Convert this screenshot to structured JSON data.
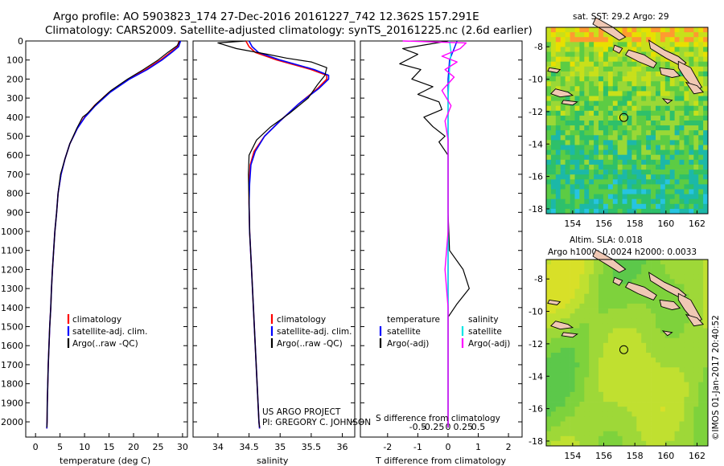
{
  "header": {
    "line1": "Argo profile: AO 5903823_174 27-Dec-2016 20161227_742 12.362S 157.291E",
    "line2": "Climatology: CARS2009. Satellite-adjusted climatology: synTS_20161225.nc (2.6d earlier)"
  },
  "credit": {
    "project": "US ARGO PROJECT",
    "pi": "PI: GREGORY C. JOHNSON"
  },
  "stamp": "©IMOS 01-Jan-2017 20:40:52",
  "colors": {
    "climatology": "#ff0000",
    "satellite": "#0000ff",
    "argo": "#000000",
    "sat_salinity": "#00e5e5",
    "argo_salinity": "#ff00ff"
  },
  "chart_data": [
    {
      "type": "line",
      "id": "temperature",
      "xlabel": "temperature (deg C)",
      "ylabel": "",
      "xlim": [
        -2,
        31
      ],
      "ylim": [
        2080,
        0
      ],
      "xticks": [
        "0",
        "5",
        "10",
        "15",
        "20",
        "25",
        "30"
      ],
      "xtick_values": [
        0,
        5,
        10,
        15,
        20,
        25,
        30
      ],
      "yticks": [
        "0",
        "100",
        "200",
        "300",
        "400",
        "500",
        "600",
        "700",
        "800",
        "900",
        "1000",
        "1100",
        "1200",
        "1300",
        "1400",
        "1500",
        "1600",
        "1700",
        "1800",
        "1900",
        "2000"
      ],
      "ytick_values": [
        0,
        100,
        200,
        300,
        400,
        500,
        600,
        700,
        800,
        900,
        1000,
        1100,
        1200,
        1300,
        1400,
        1500,
        1600,
        1700,
        1800,
        1900,
        2000
      ],
      "legend": [
        "climatology",
        "satellite-adj. clim.",
        "Argo(..raw -QC)"
      ],
      "series": [
        {
          "name": "climatology",
          "color": "#ff0000",
          "width": 1.6,
          "points": [
            [
              29.3,
              0
            ],
            [
              29.0,
              30
            ],
            [
              27.5,
              60
            ],
            [
              25.5,
              100
            ],
            [
              22.5,
              150
            ],
            [
              19.0,
              200
            ],
            [
              15.0,
              270
            ],
            [
              12.0,
              340
            ],
            [
              10.0,
              400
            ],
            [
              8.5,
              460
            ],
            [
              7.0,
              540
            ],
            [
              6.0,
              620
            ],
            [
              5.2,
              700
            ],
            [
              4.6,
              800
            ],
            [
              4.3,
              900
            ],
            [
              3.95,
              1000
            ],
            [
              3.7,
              1100
            ],
            [
              3.45,
              1200
            ],
            [
              3.25,
              1300
            ],
            [
              3.1,
              1400
            ],
            [
              2.9,
              1500
            ],
            [
              2.75,
              1600
            ],
            [
              2.6,
              1700
            ],
            [
              2.5,
              1800
            ],
            [
              2.4,
              1900
            ],
            [
              2.35,
              2000
            ],
            [
              2.3,
              2035
            ]
          ]
        },
        {
          "name": "satellite-adj. clim.",
          "color": "#0000ff",
          "width": 1.6,
          "points": [
            [
              29.6,
              0
            ],
            [
              29.2,
              30
            ],
            [
              27.8,
              60
            ],
            [
              25.8,
              100
            ],
            [
              22.8,
              150
            ],
            [
              19.2,
              200
            ],
            [
              15.2,
              270
            ],
            [
              12.2,
              340
            ],
            [
              10.1,
              400
            ],
            [
              8.5,
              460
            ],
            [
              7.0,
              540
            ],
            [
              6.0,
              620
            ],
            [
              5.2,
              700
            ],
            [
              4.6,
              800
            ],
            [
              4.3,
              900
            ],
            [
              3.95,
              1000
            ],
            [
              3.7,
              1100
            ],
            [
              3.45,
              1200
            ],
            [
              3.25,
              1300
            ],
            [
              3.1,
              1400
            ],
            [
              2.9,
              1500
            ],
            [
              2.75,
              1600
            ],
            [
              2.6,
              1700
            ],
            [
              2.5,
              1800
            ],
            [
              2.4,
              1900
            ],
            [
              2.35,
              2000
            ],
            [
              2.3,
              2035
            ]
          ]
        },
        {
          "name": "Argo(..raw -QC)",
          "color": "#000000",
          "width": 1.2,
          "points": [
            [
              29.4,
              0
            ],
            [
              28.9,
              25
            ],
            [
              27.0,
              60
            ],
            [
              25.0,
              100
            ],
            [
              22.0,
              150
            ],
            [
              18.8,
              200
            ],
            [
              15.4,
              260
            ],
            [
              12.4,
              330
            ],
            [
              10.6,
              380
            ],
            [
              9.6,
              400
            ],
            [
              8.4,
              460
            ],
            [
              7.0,
              540
            ],
            [
              6.0,
              620
            ],
            [
              5.1,
              700
            ],
            [
              4.6,
              800
            ],
            [
              4.3,
              900
            ],
            [
              3.95,
              1000
            ],
            [
              3.7,
              1100
            ],
            [
              3.45,
              1200
            ],
            [
              3.25,
              1300
            ],
            [
              3.1,
              1400
            ],
            [
              2.9,
              1500
            ],
            [
              2.75,
              1600
            ],
            [
              2.6,
              1700
            ],
            [
              2.5,
              1800
            ],
            [
              2.4,
              1900
            ],
            [
              2.35,
              2000
            ],
            [
              2.3,
              2030
            ]
          ]
        }
      ]
    },
    {
      "type": "line",
      "id": "salinity",
      "xlabel": "salinity",
      "ylabel": "",
      "xlim": [
        33.6,
        36.2
      ],
      "ylim": [
        2080,
        0
      ],
      "xticks": [
        "34",
        "34.5",
        "35",
        "35.5",
        "36"
      ],
      "xtick_values": [
        34,
        34.5,
        35,
        35.5,
        36
      ],
      "legend": [
        "climatology",
        "satellite-adj. clim.",
        "Argo(..raw -QC)"
      ],
      "series": [
        {
          "name": "climatology",
          "color": "#ff0000",
          "width": 1.6,
          "points": [
            [
              34.45,
              0
            ],
            [
              34.5,
              30
            ],
            [
              34.6,
              60
            ],
            [
              34.95,
              100
            ],
            [
              35.5,
              150
            ],
            [
              35.75,
              180
            ],
            [
              35.75,
              200
            ],
            [
              35.6,
              250
            ],
            [
              35.3,
              330
            ],
            [
              35.0,
              420
            ],
            [
              34.75,
              500
            ],
            [
              34.58,
              580
            ],
            [
              34.52,
              650
            ],
            [
              34.5,
              750
            ],
            [
              34.5,
              850
            ],
            [
              34.51,
              1000
            ],
            [
              34.54,
              1200
            ],
            [
              34.57,
              1400
            ],
            [
              34.6,
              1600
            ],
            [
              34.63,
              1800
            ],
            [
              34.66,
              2000
            ],
            [
              34.67,
              2035
            ]
          ]
        },
        {
          "name": "satellite-adj. clim.",
          "color": "#0000ff",
          "width": 1.6,
          "points": [
            [
              34.5,
              0
            ],
            [
              34.55,
              30
            ],
            [
              34.65,
              60
            ],
            [
              35.0,
              100
            ],
            [
              35.55,
              150
            ],
            [
              35.78,
              180
            ],
            [
              35.78,
              200
            ],
            [
              35.62,
              250
            ],
            [
              35.3,
              330
            ],
            [
              35.0,
              420
            ],
            [
              34.75,
              500
            ],
            [
              34.6,
              580
            ],
            [
              34.53,
              650
            ],
            [
              34.51,
              750
            ],
            [
              34.5,
              850
            ],
            [
              34.51,
              1000
            ],
            [
              34.54,
              1200
            ],
            [
              34.57,
              1400
            ],
            [
              34.6,
              1600
            ],
            [
              34.63,
              1800
            ],
            [
              34.66,
              2000
            ],
            [
              34.67,
              2035
            ]
          ]
        },
        {
          "name": "Argo(..raw -QC)",
          "color": "#000000",
          "width": 1.2,
          "points": [
            [
              34.45,
              0
            ],
            [
              34.0,
              10
            ],
            [
              34.3,
              40
            ],
            [
              34.8,
              70
            ],
            [
              35.1,
              90
            ],
            [
              35.5,
              110
            ],
            [
              35.75,
              140
            ],
            [
              35.72,
              180
            ],
            [
              35.6,
              230
            ],
            [
              35.45,
              300
            ],
            [
              35.15,
              380
            ],
            [
              34.85,
              450
            ],
            [
              34.62,
              520
            ],
            [
              34.5,
              600
            ],
            [
              34.49,
              700
            ],
            [
              34.5,
              850
            ],
            [
              34.51,
              1000
            ],
            [
              34.54,
              1200
            ],
            [
              34.57,
              1400
            ],
            [
              34.6,
              1600
            ],
            [
              34.63,
              1800
            ],
            [
              34.66,
              2000
            ],
            [
              34.67,
              2030
            ]
          ]
        }
      ]
    },
    {
      "type": "line",
      "id": "difference",
      "xlabel_top": "S difference from climatology",
      "xlabel": "T difference from climatology",
      "xlim": [
        -2.9,
        2.45
      ],
      "ylim": [
        2080,
        0
      ],
      "xticks": [
        "-2",
        "-1",
        "0",
        "1",
        "2"
      ],
      "xtick_values": [
        -2,
        -1,
        0,
        1,
        2
      ],
      "sticks": [
        "-0.5",
        "-0.25",
        "0",
        "0.25",
        "0.5"
      ],
      "stick_values": [
        -0.5,
        -0.25,
        0,
        0.25,
        0.5
      ],
      "legend_t_title": "temperature",
      "legend_s_title": "salinity",
      "legend_t": [
        "satellite",
        "Argo(-adj)"
      ],
      "legend_s": [
        "satellite",
        "Argo(-adj)"
      ],
      "series": [
        {
          "name": "T satellite",
          "color": "#0000ff",
          "width": 1.4,
          "points": [
            [
              0.3,
              0
            ],
            [
              0.2,
              40
            ],
            [
              0.05,
              100
            ],
            [
              0,
              200
            ],
            [
              0,
              400
            ],
            [
              0,
              700
            ],
            [
              0,
              1000
            ],
            [
              0,
              1400
            ],
            [
              0,
              1800
            ],
            [
              0,
              2030
            ]
          ]
        },
        {
          "name": "T Argo(-adj)",
          "color": "#000000",
          "width": 1.2,
          "points": [
            [
              0.0,
              0
            ],
            [
              -1.5,
              40
            ],
            [
              -1.0,
              70
            ],
            [
              -1.6,
              120
            ],
            [
              -0.9,
              150
            ],
            [
              -1.2,
              200
            ],
            [
              -0.5,
              240
            ],
            [
              -1.0,
              280
            ],
            [
              -0.3,
              320
            ],
            [
              -0.2,
              360
            ],
            [
              -0.8,
              400
            ],
            [
              -0.5,
              450
            ],
            [
              -0.1,
              500
            ],
            [
              -0.3,
              530
            ],
            [
              0,
              600
            ],
            [
              0,
              900
            ],
            [
              0.05,
              1100
            ],
            [
              0.5,
              1200
            ],
            [
              0.7,
              1300
            ],
            [
              0.3,
              1380
            ],
            [
              0,
              1450
            ],
            [
              0,
              2030
            ]
          ]
        },
        {
          "name": "S satellite",
          "color": "#00e5e5",
          "width": 1.4,
          "points": [
            [
              0.05,
              0
            ],
            [
              0.1,
              60
            ],
            [
              0.05,
              150
            ],
            [
              0,
              300
            ],
            [
              0,
              600
            ],
            [
              0,
              1000
            ],
            [
              0,
              1500
            ],
            [
              0,
              2030
            ]
          ]
        },
        {
          "name": "S Argo(-adj)",
          "color": "#ff00ff",
          "width": 1.4,
          "points": [
            [
              -1.5,
              0
            ],
            [
              0.6,
              10
            ],
            [
              0.4,
              40
            ],
            [
              -0.2,
              80
            ],
            [
              0.3,
              110
            ],
            [
              -0.1,
              150
            ],
            [
              0.2,
              190
            ],
            [
              -0.2,
              260
            ],
            [
              0.1,
              340
            ],
            [
              -0.1,
              420
            ],
            [
              0,
              520
            ],
            [
              0,
              700
            ],
            [
              0,
              1000
            ],
            [
              -0.1,
              1200
            ],
            [
              0,
              1400
            ],
            [
              0,
              2030
            ]
          ]
        }
      ]
    }
  ],
  "maps": [
    {
      "title": "sat. SST: 29.2 Argo: 29",
      "title2": "",
      "xticks": [
        "154",
        "156",
        "158",
        "160",
        "162"
      ],
      "xtick_values": [
        154,
        156,
        158,
        160,
        162
      ],
      "yticks": [
        "-8",
        "-10",
        "-12",
        "-14",
        "-16",
        "-18"
      ],
      "ytick_values": [
        -8,
        -10,
        -12,
        -14,
        -16,
        -18
      ],
      "xlim": [
        152.3,
        162.7
      ],
      "ylim": [
        -18.3,
        -6.8
      ],
      "float_lon": 157.291,
      "float_lat": -12.362
    },
    {
      "title": "Altim. SLA: 0.018",
      "title2": "Argo h1000: 0.0024 h2000: 0.0033",
      "xticks": [
        "154",
        "156",
        "158",
        "160",
        "162"
      ],
      "xtick_values": [
        154,
        156,
        158,
        160,
        162
      ],
      "yticks": [
        "-8",
        "-10",
        "-12",
        "-14",
        "-16",
        "-18"
      ],
      "ytick_values": [
        -8,
        -10,
        -12,
        -14,
        -16,
        -18
      ],
      "xlim": [
        152.3,
        162.7
      ],
      "ylim": [
        -18.3,
        -6.8
      ],
      "float_lon": 157.291,
      "float_lat": -12.362
    }
  ]
}
